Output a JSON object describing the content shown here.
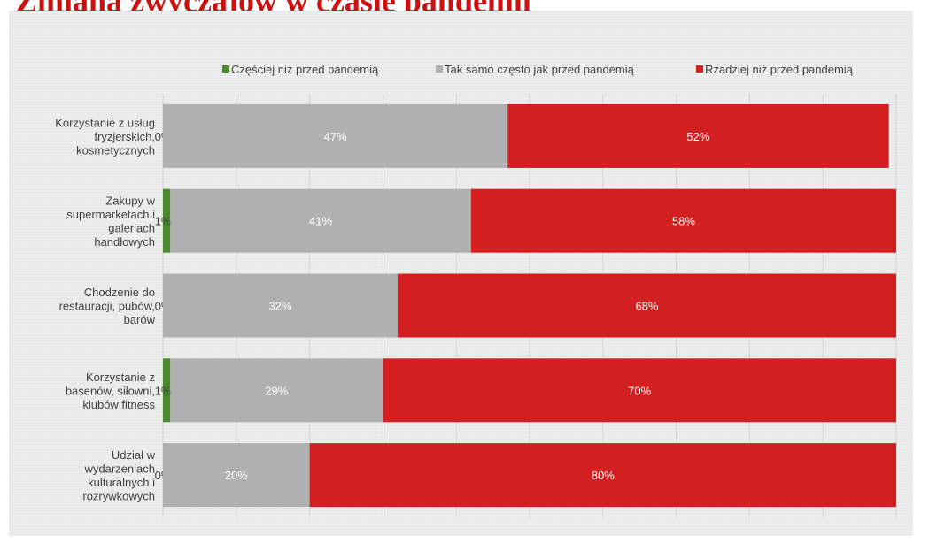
{
  "title": "Zmiana zwyczajów w czasie pandemii",
  "colors": {
    "title": "#cc1111",
    "more": "#4a8a2e",
    "same": "#b0b0b0",
    "less": "#d31f1f",
    "label": "#404040",
    "value_on_color": "#ffffff",
    "value_outside": "#404040",
    "grid": "#d4d4d4"
  },
  "chart_data": {
    "type": "bar",
    "orientation": "horizontal",
    "stacked": true,
    "xlim": [
      0,
      100
    ],
    "grid": true,
    "legend_position": "top",
    "categories": [
      "Korzystanie z usług fryzjerskich, kosmetycznych",
      "Zakupy w supermarketach i galeriach handlowych",
      "Chodzenie do restauracji, pubów, barów",
      "Korzystanie z basenów, siłowni, klubów fitness",
      "Udział w wydarzeniach kulturalnych i rozrywkowych"
    ],
    "category_lines": [
      [
        "Korzystanie z usług",
        "fryzjerskich,",
        "kosmetycznych"
      ],
      [
        "Zakupy w",
        "supermarketach i",
        "galeriach",
        "handlowych"
      ],
      [
        "Chodzenie do",
        "restauracji, pubów,",
        "barów"
      ],
      [
        "Korzystanie z",
        "basenów, siłowni,",
        "klubów fitness"
      ],
      [
        "Udział w",
        "wydarzeniach",
        "kulturalnych i",
        "rozrywkowych"
      ]
    ],
    "series": [
      {
        "name": "Częściej niż przed pandemią",
        "color_key": "more",
        "values": [
          0,
          1,
          0,
          1,
          0
        ],
        "labels": [
          "0%",
          "1%",
          "0%",
          "1%",
          "0%"
        ]
      },
      {
        "name": "Tak samo często jak przed pandemią",
        "color_key": "same",
        "values": [
          47,
          41,
          32,
          29,
          20
        ],
        "labels": [
          "47%",
          "41%",
          "32%",
          "29%",
          "20%"
        ]
      },
      {
        "name": "Rzadziej niż przed pandemią",
        "color_key": "less",
        "values": [
          52,
          58,
          68,
          70,
          80
        ],
        "labels": [
          "52%",
          "58%",
          "68%",
          "70%",
          "80%"
        ]
      }
    ]
  }
}
